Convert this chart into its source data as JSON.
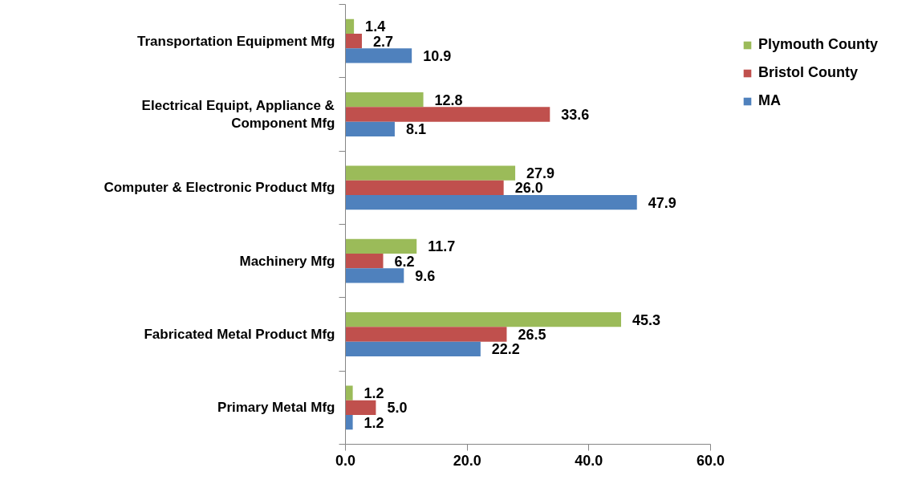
{
  "chart_data": {
    "type": "bar",
    "orientation": "horizontal",
    "categories": [
      "Transportation Equipment Mfg",
      "Electrical Equipt, Appliance & Component Mfg",
      "Computer & Electronic Product Mfg",
      "Machinery Mfg",
      "Fabricated Metal Product Mfg",
      "Primary Metal Mfg"
    ],
    "series": [
      {
        "name": "Plymouth County",
        "color": "#9bbb59",
        "values": [
          1.4,
          12.8,
          27.9,
          11.7,
          45.3,
          1.2
        ],
        "value_labels": [
          "1.4",
          "12.8",
          "27.9",
          "11.7",
          "45.3",
          "1.2"
        ]
      },
      {
        "name": "Bristol County",
        "color": "#c0504d",
        "values": [
          2.7,
          33.6,
          26.0,
          6.2,
          26.5,
          5.0
        ],
        "value_labels": [
          "2.7",
          "33.6",
          "26.0",
          "6.2",
          "26.5",
          "5.0"
        ]
      },
      {
        "name": "MA",
        "color": "#4f81bd",
        "values": [
          10.9,
          8.1,
          47.9,
          9.6,
          22.2,
          1.2
        ],
        "value_labels": [
          "10.9",
          "8.1",
          "47.9",
          "9.6",
          "22.2",
          "1.2"
        ]
      }
    ],
    "xlim": [
      0,
      60
    ],
    "xticks": [
      {
        "value": 0,
        "label": "0.0"
      },
      {
        "value": 20,
        "label": "20.0"
      },
      {
        "value": 40,
        "label": "40.0"
      },
      {
        "value": 60,
        "label": "60.0"
      }
    ],
    "grid": false,
    "legend": "top right"
  }
}
